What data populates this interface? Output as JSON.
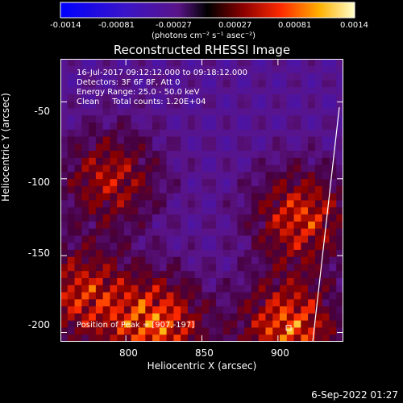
{
  "chart_data": {
    "type": "heatmap",
    "title": "Reconstructed RHESSI Image",
    "xlabel": "Heliocentric X (arcsec)",
    "ylabel": "Heliocentric Y (arcsec)",
    "xlim": [
      757,
      943
    ],
    "ylim": [
      -206,
      -22
    ],
    "x_ticks": [
      "800",
      "850",
      "900"
    ],
    "x_tick_values": [
      800,
      850,
      900
    ],
    "y_ticks": [
      "-50",
      "-100",
      "-150",
      "-200"
    ],
    "y_tick_values": [
      -50,
      -100,
      -150,
      -200
    ],
    "colorbar": {
      "ticks": [
        "-0.0014",
        "-0.00081",
        "-0.00027",
        "0.00027",
        "0.00081",
        "0.0014"
      ],
      "min": -0.0014,
      "max": 0.0014,
      "unit_label": "(photons cm⁻² s⁻¹ asec⁻²)"
    },
    "annotations": [
      "16-Jul-2017 09:12:12.000 to 09:18:12.000",
      "Detectors: 3F 6F 8F, Att 0",
      "Energy Range: 25.0 - 50.0 keV",
      "Clean     Total counts: 1.20E+04",
      "Position of Peak = [907,-197]"
    ],
    "peak_position": [
      907,
      -197
    ],
    "hot_regions": [
      {
        "x": 790,
        "y": -100,
        "intensity": 0.001
      },
      {
        "x": 820,
        "y": -195,
        "intensity": 0.0014
      },
      {
        "x": 770,
        "y": -175,
        "intensity": 0.0011
      },
      {
        "x": 915,
        "y": -125,
        "intensity": 0.0012
      },
      {
        "x": 907,
        "y": -197,
        "intensity": 0.0014
      }
    ]
  },
  "timestamp": "6-Sep-2022 01:27"
}
